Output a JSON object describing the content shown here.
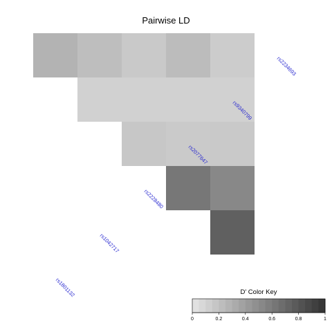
{
  "chart_data": {
    "type": "heatmap",
    "title": "Pairwise LD",
    "snps": [
      "rs1801132",
      "rs1042717",
      "rs2228480",
      "rs2077647",
      "rs9340799",
      "rs2234693"
    ],
    "matrix": [
      [
        null,
        0.28,
        0.22,
        0.16,
        0.23,
        0.14
      ],
      [
        null,
        null,
        0.11,
        0.11,
        0.11,
        0.11
      ],
      [
        null,
        null,
        null,
        0.17,
        0.15,
        0.16
      ],
      [
        null,
        null,
        null,
        null,
        0.62,
        0.52
      ],
      [
        null,
        null,
        null,
        null,
        null,
        0.75
      ],
      [
        null,
        null,
        null,
        null,
        null,
        null
      ]
    ],
    "color_key": {
      "title": "D' Color Key",
      "range": [
        0,
        1
      ],
      "ticks": [
        "0",
        "0.2",
        "0.4",
        "0.6",
        "0.8",
        "1"
      ],
      "low_color": "#e5e5e5",
      "high_color": "#333333"
    }
  }
}
